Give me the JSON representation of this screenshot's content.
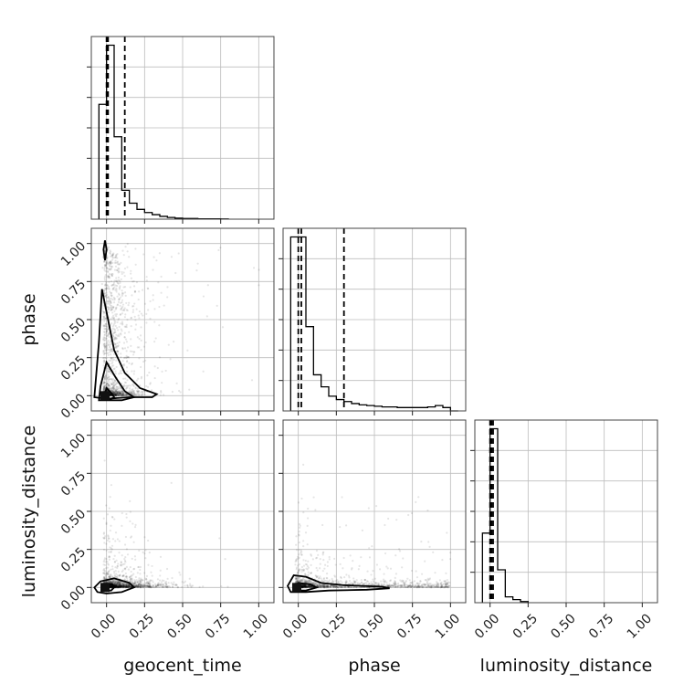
{
  "chart_data": {
    "type": "corner",
    "parameters": [
      "geocent_time",
      "phase",
      "luminosity_distance"
    ],
    "xlabels": [
      "geocent_time",
      "phase",
      "luminosity_distance"
    ],
    "ylabels": [
      "",
      "phase",
      "luminosity_distance"
    ],
    "range": [
      -0.1,
      1.1
    ],
    "ticks": [
      0.0,
      0.25,
      0.5,
      0.75,
      1.0
    ],
    "tick_labels": [
      "0.00",
      "0.25",
      "0.50",
      "0.75",
      "1.00"
    ],
    "grid": true,
    "histograms": [
      {
        "parameter": "geocent_time",
        "bin_edges": [
          -0.05,
          0.0,
          0.05,
          0.1,
          0.15,
          0.2,
          0.25,
          0.3,
          0.35,
          0.4,
          0.45,
          0.5,
          0.55,
          0.6,
          0.65,
          0.7,
          0.75,
          0.8
        ],
        "counts": [
          330,
          500,
          237,
          83,
          46,
          28,
          19,
          13,
          8,
          5,
          3,
          2,
          2,
          1,
          1,
          1,
          0.5
        ],
        "quantiles": [
          0.0,
          0.01,
          0.12
        ]
      },
      {
        "parameter": "phase",
        "bin_edges": [
          -0.05,
          0.0,
          0.05,
          0.1,
          0.15,
          0.2,
          0.25,
          0.3,
          0.35,
          0.4,
          0.45,
          0.5,
          0.55,
          0.6,
          0.65,
          0.7,
          0.75,
          0.8,
          0.85,
          0.9,
          0.95,
          1.0,
          1.05
        ],
        "counts": [
          260,
          260,
          126,
          54,
          36,
          22,
          17,
          14,
          11,
          9,
          8,
          7,
          6,
          6,
          5,
          5,
          5,
          5,
          6,
          8,
          5,
          0
        ],
        "quantiles": [
          0.0,
          0.02,
          0.3
        ]
      },
      {
        "parameter": "luminosity_distance",
        "bin_edges": [
          -0.05,
          0.0,
          0.05,
          0.1,
          0.15,
          0.2,
          0.25
        ],
        "counts": [
          180,
          450,
          85,
          15,
          8,
          3
        ],
        "quantiles": [
          0.0,
          0.01,
          0.02
        ]
      }
    ],
    "pairs": [
      {
        "x": "geocent_time",
        "y": "phase",
        "peak": [
          -0.01,
          0.0
        ],
        "contours": [
          [
            [
              -0.02,
              -0.02
            ],
            [
              0.0,
              0.05
            ],
            [
              0.03,
              0.02
            ],
            [
              0.05,
              -0.01
            ],
            [
              0.03,
              -0.02
            ],
            [
              -0.01,
              -0.02
            ]
          ],
          [
            [
              -0.05,
              -0.03
            ],
            [
              -0.04,
              0.06
            ],
            [
              0.0,
              0.22
            ],
            [
              0.06,
              0.12
            ],
            [
              0.12,
              0.03
            ],
            [
              0.18,
              -0.01
            ],
            [
              0.1,
              -0.03
            ],
            [
              0.0,
              -0.03
            ]
          ],
          [
            [
              -0.08,
              -0.01
            ],
            [
              -0.05,
              0.35
            ],
            [
              -0.03,
              0.7
            ],
            [
              0.0,
              0.55
            ],
            [
              0.05,
              0.3
            ],
            [
              0.12,
              0.15
            ],
            [
              0.22,
              0.05
            ],
            [
              0.33,
              0.01
            ],
            [
              0.3,
              -0.01
            ],
            [
              0.15,
              -0.01
            ],
            [
              0.0,
              -0.02
            ]
          ],
          [
            [
              -0.01,
              0.89
            ],
            [
              -0.02,
              0.96
            ],
            [
              -0.01,
              1.02
            ],
            [
              0.0,
              0.96
            ]
          ]
        ]
      },
      {
        "x": "geocent_time",
        "y": "luminosity_distance",
        "peak": [
          -0.01,
          0.0
        ],
        "contours": [
          [
            [
              -0.02,
              -0.02
            ],
            [
              -0.01,
              0.02
            ],
            [
              0.04,
              0.02
            ],
            [
              0.05,
              0.0
            ],
            [
              0.03,
              -0.02
            ]
          ],
          [
            [
              -0.08,
              0.0
            ],
            [
              -0.04,
              0.04
            ],
            [
              0.05,
              0.06
            ],
            [
              0.15,
              0.03
            ],
            [
              0.18,
              0.0
            ],
            [
              0.1,
              -0.03
            ],
            [
              0.0,
              -0.04
            ],
            [
              -0.06,
              -0.03
            ]
          ]
        ]
      },
      {
        "x": "phase",
        "y": "luminosity_distance",
        "peak": [
          -0.01,
          0.0
        ],
        "contours": [
          [
            [
              -0.03,
              0.0
            ],
            [
              0.0,
              0.03
            ],
            [
              0.08,
              0.02
            ],
            [
              0.12,
              0.0
            ],
            [
              0.05,
              -0.02
            ],
            [
              0.0,
              -0.02
            ]
          ],
          [
            [
              -0.07,
              0.01
            ],
            [
              -0.03,
              0.08
            ],
            [
              0.05,
              0.07
            ],
            [
              0.15,
              0.03
            ],
            [
              0.3,
              0.015
            ],
            [
              0.55,
              0.005
            ],
            [
              0.6,
              -0.005
            ],
            [
              0.45,
              -0.015
            ],
            [
              0.2,
              -0.02
            ],
            [
              0.05,
              -0.03
            ],
            [
              -0.05,
              -0.03
            ]
          ]
        ]
      }
    ]
  }
}
